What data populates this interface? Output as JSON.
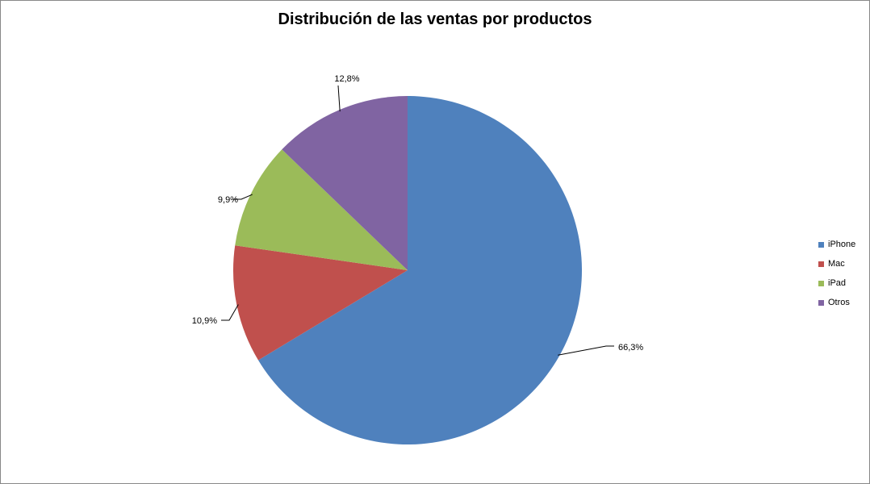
{
  "chart_data": {
    "type": "pie",
    "title": "Distribución de las ventas por productos",
    "legend_position": "right",
    "categories": [
      "iPhone",
      "Mac",
      "iPad",
      "Otros"
    ],
    "values": [
      66.3,
      10.9,
      9.9,
      12.8
    ],
    "data_labels": [
      "66,3%",
      "10,9%",
      "9,9%",
      "12,8%"
    ],
    "colors": [
      "#4f81bd",
      "#c0504d",
      "#9bbb59",
      "#8064a2"
    ]
  }
}
